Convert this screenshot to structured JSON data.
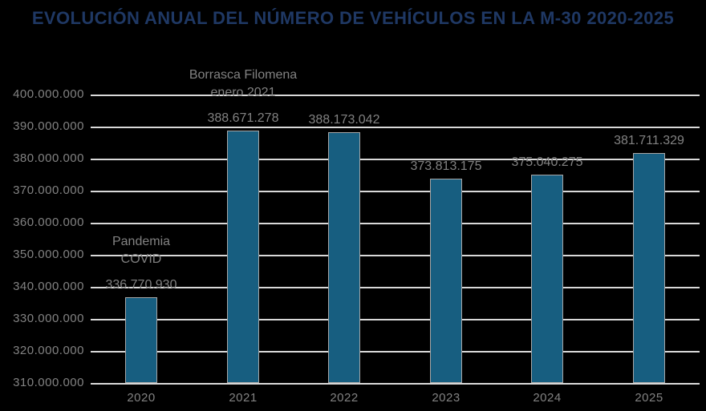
{
  "chart_data": {
    "type": "bar",
    "title": "EVOLUCIÓN ANUAL DEL NÚMERO DE VEHÍCULOS EN LA M-30 2020-2025",
    "categories": [
      "2020",
      "2021",
      "2022",
      "2023",
      "2024",
      "2025"
    ],
    "values": [
      336770930,
      388671278,
      388173042,
      373813175,
      375040275,
      381711329
    ],
    "data_labels": [
      "336.770.930",
      "388.671.278",
      "388.173.042",
      "373.813.175",
      "375.040.275",
      "381.711.329"
    ],
    "xlabel": "",
    "ylabel": "",
    "ylim": [
      310000000,
      400000000
    ],
    "ytick_step": 10000000,
    "ytick_labels": [
      "400.000.000",
      "390.000.000",
      "380.000.000",
      "370.000.000",
      "360.000.000",
      "350.000.000",
      "340.000.000",
      "330.000.000",
      "320.000.000",
      "310.000.000"
    ],
    "grid": true,
    "legend_position": "none",
    "annotations": [
      {
        "category": "2020",
        "lines": [
          "Pandemia",
          "COVID"
        ]
      },
      {
        "category": "2021",
        "lines": [
          "Borrasca Filomena",
          "enero 2021"
        ]
      }
    ],
    "colors": {
      "background": "#000000",
      "bar": "#175E80",
      "bar_border": "#A6A6A6",
      "grid": "#D9D9D9",
      "text": "#828282",
      "title": "#1F3864"
    }
  }
}
